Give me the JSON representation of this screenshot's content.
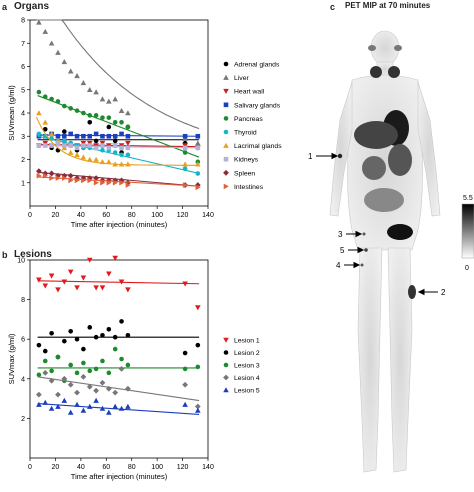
{
  "figure": {
    "panel_a_letter": "a",
    "panel_a_title": "Organs",
    "panel_b_letter": "b",
    "panel_b_title": "Lesions",
    "panel_c_letter": "c",
    "panel_c_title": "PET MIP at 70 minutes"
  },
  "chart_data": [
    {
      "type": "scatter",
      "panel": "a",
      "title": "Organs",
      "xlabel": "Time after injection (minutes)",
      "ylabel": "SUVmean (g/ml)",
      "xlim": [
        0,
        140
      ],
      "ylim": [
        0,
        8
      ],
      "xticks": [
        0,
        20,
        40,
        60,
        80,
        100,
        120,
        140
      ],
      "yticks": [
        1,
        2,
        3,
        4,
        5,
        6,
        7,
        8
      ],
      "grid": false,
      "legend": "right",
      "x": [
        7,
        12,
        17,
        22,
        27,
        32,
        37,
        42,
        47,
        52,
        57,
        62,
        67,
        72,
        77,
        122,
        132
      ],
      "series": [
        {
          "name": "Adrenal glands",
          "color": "#000000",
          "marker": "circle",
          "values": [
            2.6,
            3.3,
            2.5,
            2.4,
            3.2,
            2.7,
            2.4,
            2.5,
            3.6,
            2.8,
            2.6,
            3.4,
            2.8,
            2.3,
            3.4,
            2.7,
            3.0
          ],
          "fit": [
            2.85,
            2.85
          ]
        },
        {
          "name": "Liver",
          "color": "#777777",
          "marker": "triangle-up",
          "values": [
            7.9,
            7.5,
            7.0,
            6.6,
            6.2,
            5.8,
            5.6,
            5.3,
            5.0,
            4.9,
            4.6,
            4.5,
            4.6,
            4.1,
            4.0,
            2.9,
            2.7
          ],
          "fit": "exp",
          "fit_params": [
            8.6,
            0.0135,
            1.9
          ]
        },
        {
          "name": "Heart wall",
          "color": "#cc1f1f",
          "marker": "triangle-down",
          "values": [
            2.6,
            2.7,
            2.6,
            2.7,
            2.7,
            2.6,
            2.6,
            2.7,
            2.7,
            2.6,
            2.7,
            2.6,
            2.6,
            2.6,
            2.7,
            2.6,
            2.5
          ],
          "fit": [
            2.65,
            2.55
          ]
        },
        {
          "name": "Salivary glands",
          "color": "#1c3fbf",
          "marker": "square",
          "values": [
            3.0,
            3.0,
            3.1,
            3.0,
            3.0,
            3.1,
            3.0,
            3.0,
            3.0,
            3.1,
            3.0,
            3.0,
            3.0,
            3.1,
            3.0,
            3.0,
            3.0
          ],
          "fit": [
            3.05,
            3.0
          ]
        },
        {
          "name": "Pancreas",
          "color": "#1e8a2e",
          "marker": "circle",
          "values": [
            4.9,
            4.7,
            4.6,
            4.5,
            4.3,
            4.2,
            4.1,
            4.0,
            3.9,
            3.9,
            3.8,
            3.8,
            3.6,
            3.6,
            3.4,
            2.3,
            1.9
          ],
          "fit": [
            4.75,
            2.1
          ]
        },
        {
          "name": "Thyroid",
          "color": "#17b5c8",
          "marker": "circle",
          "values": [
            3.1,
            3.0,
            2.9,
            2.8,
            2.8,
            2.7,
            2.6,
            2.5,
            2.5,
            2.5,
            2.4,
            2.4,
            2.3,
            2.2,
            2.2,
            1.6,
            1.4
          ],
          "fit": [
            3.0,
            1.4
          ]
        },
        {
          "name": "Lacrimal glands",
          "color": "#e8a020",
          "marker": "triangle-up",
          "values": [
            4.0,
            3.6,
            3.1,
            2.8,
            2.5,
            2.3,
            2.2,
            2.1,
            2.0,
            2.0,
            1.9,
            1.9,
            1.8,
            1.8,
            1.8,
            1.8,
            1.8
          ],
          "fit": "exp",
          "fit_params": [
            2.8,
            0.06,
            1.75
          ]
        },
        {
          "name": "Kidneys",
          "color": "#b7b0d8",
          "marker": "square",
          "values": [
            2.6,
            2.6,
            2.6,
            2.7,
            2.6,
            2.6,
            2.5,
            2.6,
            2.6,
            2.5,
            2.6,
            2.5,
            2.6,
            2.5,
            2.5,
            2.5,
            2.5
          ],
          "fit": [
            2.6,
            2.5
          ]
        },
        {
          "name": "Spleen",
          "color": "#8b2a3a",
          "marker": "diamond",
          "values": [
            1.5,
            1.4,
            1.4,
            1.3,
            1.3,
            1.3,
            1.2,
            1.2,
            1.2,
            1.2,
            1.1,
            1.1,
            1.1,
            1.1,
            1.0,
            0.9,
            0.9
          ],
          "fit": [
            1.45,
            0.85
          ]
        },
        {
          "name": "Intestines",
          "color": "#e0603a",
          "marker": "triangle-right",
          "values": [
            1.3,
            1.3,
            1.2,
            1.2,
            1.2,
            1.1,
            1.1,
            1.1,
            1.1,
            1.0,
            1.0,
            1.0,
            1.0,
            1.0,
            0.9,
            0.9,
            0.8
          ],
          "fit": [
            1.25,
            0.85
          ]
        }
      ]
    },
    {
      "type": "scatter",
      "panel": "b",
      "title": "Lesions",
      "xlabel": "Time after injection (minutes)",
      "ylabel": "SUVmax (g/ml)",
      "xlim": [
        0,
        140
      ],
      "ylim": [
        0,
        10
      ],
      "xticks": [
        0,
        20,
        40,
        60,
        80,
        100,
        120,
        140
      ],
      "yticks": [
        2,
        4,
        6,
        8,
        10
      ],
      "grid": false,
      "legend": "right",
      "x": [
        7,
        12,
        17,
        22,
        27,
        32,
        37,
        42,
        47,
        52,
        57,
        62,
        67,
        72,
        77,
        122,
        132
      ],
      "series": [
        {
          "name": "Lesion 1",
          "color": "#e31a1c",
          "marker": "triangle-down",
          "values": [
            9.0,
            8.7,
            9.2,
            8.5,
            8.9,
            9.4,
            8.6,
            9.1,
            10.0,
            8.6,
            8.6,
            9.3,
            10.1,
            8.9,
            8.5,
            8.8,
            7.6
          ],
          "fit": [
            8.95,
            8.8
          ]
        },
        {
          "name": "Lesion 2",
          "color": "#000000",
          "marker": "circle",
          "values": [
            5.7,
            5.4,
            6.3,
            5.1,
            5.9,
            6.4,
            6.0,
            5.5,
            6.6,
            6.1,
            6.2,
            6.5,
            6.1,
            6.9,
            6.2,
            5.3,
            5.7
          ],
          "fit": [
            6.1,
            6.1
          ]
        },
        {
          "name": "Lesion 3",
          "color": "#1e8a2e",
          "marker": "circle",
          "values": [
            4.2,
            4.9,
            4.4,
            5.1,
            3.9,
            4.7,
            4.3,
            4.8,
            4.4,
            4.5,
            4.9,
            4.3,
            5.5,
            5.0,
            4.7,
            4.5,
            4.6
          ],
          "fit": [
            4.55,
            4.55
          ]
        },
        {
          "name": "Lesion 4",
          "color": "#777777",
          "marker": "diamond",
          "values": [
            3.2,
            4.3,
            3.9,
            3.2,
            4.0,
            3.7,
            3.3,
            4.1,
            3.6,
            3.4,
            3.8,
            3.5,
            3.3,
            4.5,
            3.5,
            3.7,
            2.6
          ],
          "fit": [
            4.1,
            2.9
          ]
        },
        {
          "name": "Lesion 5",
          "color": "#1c3fbf",
          "marker": "triangle-up",
          "values": [
            2.7,
            2.8,
            2.5,
            2.6,
            2.9,
            2.3,
            2.7,
            2.4,
            2.6,
            2.9,
            2.5,
            2.3,
            2.6,
            2.5,
            2.6,
            2.7,
            2.4
          ],
          "fit": [
            2.75,
            2.2
          ]
        }
      ]
    }
  ],
  "pet_image": {
    "colorbar_max_label": "5.5",
    "colorbar_min_label": "0",
    "arrow_labels": [
      "1",
      "5",
      "3",
      "4",
      "2"
    ]
  }
}
